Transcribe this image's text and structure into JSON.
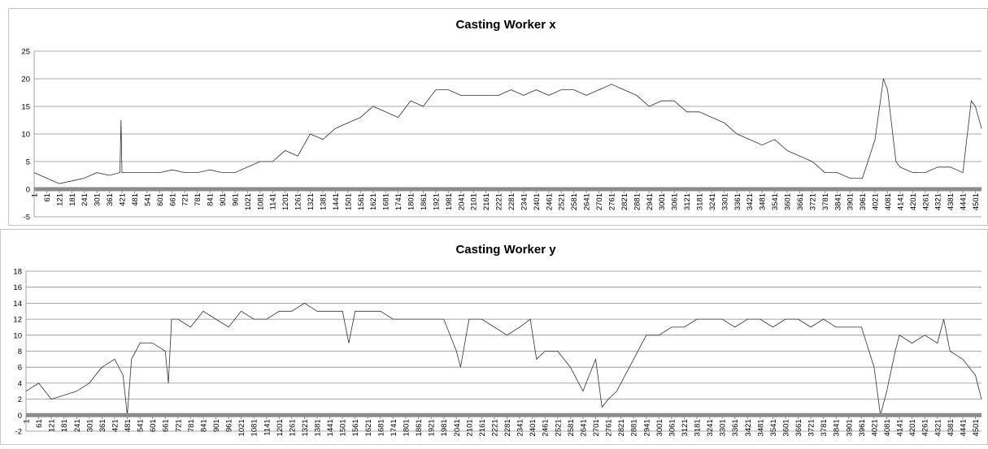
{
  "chart_data": [
    {
      "type": "line",
      "title": "Casting Worker x",
      "color": "#303030",
      "grid": true,
      "xlim": [
        1,
        4530
      ],
      "ylim": [
        -5,
        25
      ],
      "yticks": [
        -5,
        0,
        5,
        10,
        15,
        20,
        25
      ],
      "xticks": [
        1,
        61,
        121,
        181,
        241,
        301,
        361,
        421,
        481,
        541,
        601,
        661,
        721,
        781,
        841,
        901,
        961,
        1021,
        1081,
        1141,
        1201,
        1261,
        1321,
        1381,
        1441,
        1501,
        1561,
        1621,
        1681,
        1741,
        1801,
        1861,
        1921,
        1981,
        2041,
        2101,
        2161,
        2221,
        2281,
        2341,
        2401,
        2461,
        2521,
        2581,
        2641,
        2701,
        2761,
        2821,
        2881,
        2941,
        3001,
        3061,
        3121,
        3181,
        3241,
        3301,
        3361,
        3421,
        3481,
        3541,
        3601,
        3661,
        3721,
        3781,
        3841,
        3901,
        3961,
        4021,
        4081,
        4141,
        4201,
        4261,
        4321,
        4381,
        4441,
        4501
      ],
      "x": [
        1,
        61,
        121,
        181,
        241,
        301,
        361,
        411,
        416,
        421,
        481,
        541,
        601,
        661,
        721,
        781,
        841,
        901,
        961,
        1021,
        1081,
        1141,
        1201,
        1261,
        1321,
        1381,
        1441,
        1501,
        1561,
        1621,
        1681,
        1741,
        1801,
        1861,
        1921,
        1981,
        2041,
        2101,
        2161,
        2221,
        2281,
        2341,
        2401,
        2461,
        2521,
        2581,
        2641,
        2701,
        2761,
        2821,
        2881,
        2941,
        3001,
        3061,
        3121,
        3181,
        3241,
        3301,
        3361,
        3421,
        3481,
        3541,
        3601,
        3661,
        3721,
        3781,
        3841,
        3901,
        3961,
        4021,
        4061,
        4081,
        4121,
        4141,
        4201,
        4261,
        4321,
        4381,
        4441,
        4481,
        4501,
        4530
      ],
      "values": [
        3,
        2,
        1,
        1.5,
        2,
        3,
        2.5,
        3,
        12.5,
        3,
        3,
        3,
        3,
        3.5,
        3,
        3,
        3.5,
        3,
        3,
        4,
        5,
        5,
        7,
        6,
        10,
        9,
        11,
        12,
        13,
        15,
        14,
        13,
        16,
        15,
        18,
        18,
        17,
        17,
        17,
        17,
        18,
        17,
        18,
        17,
        18,
        18,
        17,
        18,
        19,
        18,
        17,
        15,
        16,
        16,
        14,
        14,
        13,
        12,
        10,
        9,
        8,
        9,
        7,
        6,
        5,
        3,
        3,
        2,
        2,
        9,
        20,
        18,
        5,
        4,
        3,
        3,
        4,
        4,
        3,
        16,
        15,
        11
      ]
    },
    {
      "type": "line",
      "title": "Casting Worker y",
      "color": "#303030",
      "grid": true,
      "xlim": [
        1,
        4530
      ],
      "ylim": [
        -2,
        18
      ],
      "yticks": [
        -2,
        0,
        2,
        4,
        6,
        8,
        10,
        12,
        14,
        16,
        18
      ],
      "xticks": [
        1,
        61,
        121,
        181,
        241,
        301,
        361,
        421,
        481,
        541,
        601,
        661,
        721,
        781,
        841,
        901,
        961,
        1021,
        1081,
        1141,
        1201,
        1261,
        1321,
        1381,
        1441,
        1501,
        1561,
        1621,
        1681,
        1741,
        1801,
        1861,
        1921,
        1981,
        2041,
        2101,
        2161,
        2221,
        2281,
        2341,
        2401,
        2461,
        2521,
        2581,
        2641,
        2701,
        2761,
        2821,
        2881,
        2941,
        3001,
        3061,
        3121,
        3181,
        3241,
        3301,
        3361,
        3421,
        3481,
        3541,
        3601,
        3661,
        3721,
        3781,
        3841,
        3901,
        3961,
        4021,
        4081,
        4141,
        4201,
        4261,
        4321,
        4381,
        4441,
        4501
      ],
      "x": [
        1,
        61,
        121,
        181,
        241,
        301,
        361,
        421,
        461,
        481,
        501,
        541,
        601,
        661,
        676,
        691,
        721,
        781,
        841,
        901,
        961,
        1021,
        1081,
        1141,
        1201,
        1261,
        1321,
        1381,
        1441,
        1501,
        1531,
        1561,
        1621,
        1681,
        1741,
        1801,
        1861,
        1921,
        1981,
        2041,
        2061,
        2101,
        2161,
        2221,
        2281,
        2341,
        2391,
        2421,
        2461,
        2521,
        2581,
        2641,
        2701,
        2731,
        2761,
        2801,
        2821,
        2881,
        2941,
        3001,
        3061,
        3121,
        3181,
        3241,
        3301,
        3361,
        3421,
        3481,
        3541,
        3601,
        3661,
        3721,
        3781,
        3841,
        3901,
        3961,
        4021,
        4051,
        4081,
        4121,
        4141,
        4201,
        4261,
        4321,
        4351,
        4381,
        4441,
        4501,
        4530
      ],
      "values": [
        3,
        4,
        2,
        2.5,
        3,
        4,
        6,
        7,
        5,
        0,
        7,
        9,
        9,
        8,
        4,
        12,
        12,
        11,
        13,
        12,
        11,
        13,
        12,
        12,
        13,
        13,
        14,
        13,
        13,
        13,
        9,
        13,
        13,
        13,
        12,
        12,
        12,
        12,
        12,
        8,
        6,
        12,
        12,
        11,
        10,
        11,
        12,
        7,
        8,
        8,
        6,
        3,
        7,
        1,
        2,
        3,
        4,
        7,
        10,
        10,
        11,
        11,
        12,
        12,
        12,
        11,
        12,
        12,
        11,
        12,
        12,
        11,
        12,
        11,
        11,
        11,
        6,
        0,
        3,
        8,
        10,
        9,
        10,
        9,
        12,
        8,
        7,
        5,
        2
      ]
    }
  ]
}
